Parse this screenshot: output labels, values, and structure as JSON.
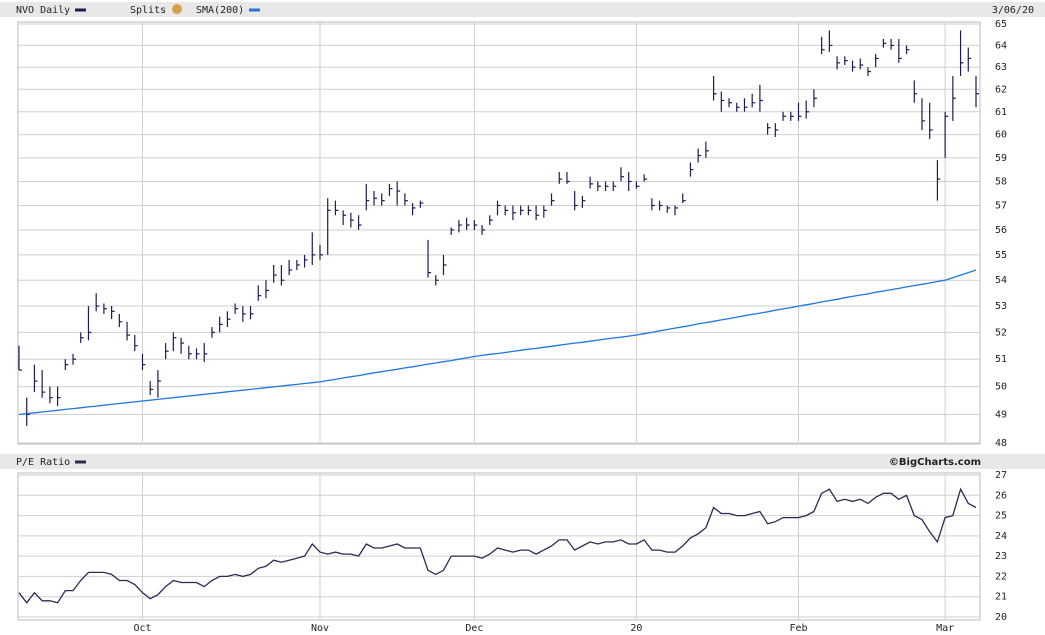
{
  "chart_data": [
    {
      "type": "ohlc",
      "splits_label": "Splits",
      "date_label": "3/06/20",
      "log_scale": true,
      "grid": true,
      "ylim": [
        48,
        65
      ],
      "yticks": [
        48,
        49,
        50,
        51,
        52,
        53,
        54,
        55,
        56,
        57,
        58,
        59,
        60,
        61,
        62,
        63,
        64,
        65
      ],
      "series": [
        {
          "name": "NVO Daily",
          "color": "#1c1c52",
          "high": [
            51.5,
            49.6,
            50.8,
            50.6,
            50.0,
            50.0,
            51.0,
            51.2,
            52.0,
            53.0,
            53.5,
            53.1,
            53.0,
            52.7,
            52.4,
            51.9,
            51.2,
            50.2,
            50.6,
            51.6,
            52.0,
            51.8,
            51.5,
            51.4,
            51.6,
            52.2,
            52.6,
            52.8,
            53.1,
            53.0,
            53.0,
            53.8,
            54.0,
            54.6,
            54.6,
            54.8,
            54.8,
            55.0,
            55.9,
            55.4,
            57.3,
            57.2,
            56.8,
            56.7,
            56.6,
            57.9,
            57.6,
            57.5,
            57.9,
            58.0,
            57.5,
            57.1,
            57.2,
            55.6,
            54.2,
            55.0,
            56.1,
            56.4,
            56.5,
            56.4,
            56.2,
            56.6,
            57.2,
            57.0,
            57.0,
            57.0,
            57.0,
            57.0,
            57.0,
            57.5,
            58.4,
            58.4,
            57.6,
            57.4,
            58.2,
            58.0,
            58.0,
            58.0,
            58.6,
            58.4,
            58.0,
            58.3,
            57.3,
            57.2,
            57.0,
            57.0,
            57.5,
            58.8,
            59.4,
            59.7,
            62.6,
            61.9,
            61.6,
            61.4,
            61.6,
            61.8,
            62.2,
            60.5,
            60.5,
            61.0,
            61.0,
            61.4,
            61.5,
            62.0,
            64.4,
            64.7,
            63.5,
            63.5,
            63.3,
            63.4,
            63.0,
            63.6,
            64.3,
            64.3,
            64.3,
            64.0,
            62.4,
            61.6,
            61.4,
            58.9,
            61.0,
            62.6,
            64.7,
            63.9,
            62.6
          ],
          "low": [
            50.6,
            48.6,
            49.8,
            49.6,
            49.4,
            49.3,
            50.6,
            50.8,
            51.6,
            51.7,
            52.8,
            52.7,
            52.5,
            52.2,
            51.7,
            51.3,
            50.6,
            49.7,
            49.6,
            51.0,
            51.3,
            51.2,
            51.0,
            51.0,
            50.9,
            51.8,
            52.0,
            52.2,
            52.7,
            52.4,
            52.5,
            53.2,
            53.3,
            53.9,
            53.8,
            54.2,
            54.4,
            54.5,
            54.6,
            54.8,
            55.0,
            56.6,
            56.2,
            56.1,
            56.0,
            56.8,
            57.0,
            57.0,
            57.4,
            57.0,
            57.0,
            56.6,
            56.9,
            54.1,
            53.8,
            54.2,
            55.8,
            55.9,
            56.0,
            56.0,
            55.8,
            56.2,
            56.6,
            56.6,
            56.4,
            56.6,
            56.6,
            56.4,
            56.5,
            57.0,
            57.9,
            57.9,
            56.8,
            56.9,
            57.7,
            57.6,
            57.6,
            57.6,
            58.0,
            57.6,
            57.7,
            58.0,
            56.8,
            56.8,
            56.7,
            56.6,
            57.1,
            58.2,
            58.8,
            59.0,
            61.5,
            61.0,
            61.2,
            61.0,
            61.0,
            61.2,
            61.0,
            60.0,
            59.9,
            60.6,
            60.6,
            60.6,
            60.7,
            61.2,
            63.6,
            63.7,
            62.9,
            63.1,
            62.8,
            62.9,
            62.6,
            63.0,
            63.9,
            63.8,
            63.2,
            63.6,
            61.4,
            60.2,
            59.8,
            57.2,
            59.0,
            60.6,
            62.6,
            62.8,
            61.2
          ],
          "close": [
            50.6,
            49.0,
            50.2,
            49.8,
            49.6,
            49.6,
            50.8,
            51.0,
            51.8,
            52.0,
            53.0,
            52.9,
            52.8,
            52.4,
            51.9,
            51.5,
            50.8,
            49.9,
            50.2,
            51.3,
            51.8,
            51.6,
            51.2,
            51.2,
            51.2,
            52.0,
            52.3,
            52.5,
            52.9,
            52.7,
            52.7,
            53.4,
            53.6,
            54.2,
            54.0,
            54.4,
            54.6,
            54.8,
            55.0,
            55.0,
            56.8,
            56.8,
            56.6,
            56.4,
            56.2,
            57.2,
            57.3,
            57.2,
            57.7,
            57.6,
            57.2,
            56.9,
            57.1,
            54.3,
            54.0,
            54.6,
            56.0,
            56.2,
            56.2,
            56.2,
            56.0,
            56.4,
            57.0,
            56.8,
            56.7,
            56.8,
            56.8,
            56.6,
            56.8,
            57.2,
            58.1,
            58.0,
            57.0,
            57.2,
            57.9,
            57.8,
            57.8,
            57.8,
            58.2,
            58.0,
            57.8,
            58.1,
            57.0,
            57.0,
            56.9,
            56.9,
            57.2,
            58.5,
            59.1,
            59.3,
            61.8,
            61.5,
            61.4,
            61.2,
            61.2,
            61.4,
            61.5,
            60.3,
            60.2,
            60.8,
            60.8,
            60.8,
            61.0,
            61.6,
            63.8,
            64.0,
            63.2,
            63.3,
            63.0,
            63.1,
            62.8,
            63.4,
            64.1,
            64.0,
            63.4,
            63.8,
            61.8,
            60.6,
            60.2,
            58.1,
            60.8,
            61.6,
            63.2,
            63.4,
            61.8
          ]
        },
        {
          "name": "SMA(200)",
          "color": "#1f78e0",
          "values": [
            49.0,
            49.03,
            49.06,
            49.09,
            49.12,
            49.15,
            49.18,
            49.21,
            49.24,
            49.27,
            49.3,
            49.33,
            49.36,
            49.39,
            49.42,
            49.45,
            49.48,
            49.51,
            49.54,
            49.57,
            49.6,
            49.63,
            49.66,
            49.69,
            49.72,
            49.75,
            49.78,
            49.81,
            49.84,
            49.87,
            49.9,
            49.93,
            49.96,
            49.99,
            50.02,
            50.05,
            50.08,
            50.11,
            50.14,
            50.17,
            50.22,
            50.26,
            50.31,
            50.36,
            50.4,
            50.45,
            50.5,
            50.54,
            50.59,
            50.63,
            50.68,
            50.72,
            50.77,
            50.82,
            50.86,
            50.91,
            50.95,
            51.0,
            51.05,
            51.1,
            51.14,
            51.18,
            51.21,
            51.25,
            51.29,
            51.33,
            51.37,
            51.4,
            51.44,
            51.48,
            51.52,
            51.56,
            51.6,
            51.63,
            51.67,
            51.71,
            51.75,
            51.79,
            51.82,
            51.86,
            51.9,
            51.95,
            52.0,
            52.06,
            52.11,
            52.16,
            52.21,
            52.26,
            52.32,
            52.37,
            52.42,
            52.47,
            52.52,
            52.58,
            52.63,
            52.68,
            52.73,
            52.78,
            52.84,
            52.89,
            52.94,
            53.0,
            53.05,
            53.1,
            53.16,
            53.21,
            53.26,
            53.32,
            53.37,
            53.42,
            53.47,
            53.53,
            53.58,
            53.63,
            53.68,
            53.74,
            53.79,
            53.84,
            53.89,
            53.95,
            54.0,
            54.1,
            54.2,
            54.3,
            54.4
          ]
        }
      ]
    },
    {
      "type": "line",
      "title": "P/E Ratio",
      "credit": "©BigCharts.com",
      "color": "#2a2a55",
      "grid": true,
      "ylim": [
        20,
        27
      ],
      "yticks": [
        20,
        21,
        22,
        23,
        24,
        25,
        26,
        27
      ],
      "categories": [
        null,
        null,
        null,
        null,
        null,
        null,
        null,
        null,
        null,
        null,
        null,
        null,
        null,
        null,
        null,
        null,
        "Oct",
        null,
        null,
        null,
        null,
        null,
        null,
        null,
        null,
        null,
        null,
        null,
        null,
        null,
        null,
        null,
        null,
        null,
        null,
        null,
        null,
        null,
        null,
        "Nov",
        null,
        null,
        null,
        null,
        null,
        null,
        null,
        null,
        null,
        null,
        null,
        null,
        null,
        null,
        null,
        null,
        null,
        null,
        null,
        "Dec",
        null,
        null,
        null,
        null,
        null,
        null,
        null,
        null,
        null,
        null,
        null,
        null,
        null,
        null,
        null,
        null,
        null,
        null,
        null,
        null,
        "20",
        null,
        null,
        null,
        null,
        null,
        null,
        null,
        null,
        null,
        null,
        null,
        null,
        null,
        null,
        null,
        null,
        null,
        null,
        null,
        null,
        "Feb",
        null,
        null,
        null,
        null,
        null,
        null,
        null,
        null,
        null,
        null,
        null,
        null,
        null,
        null,
        null,
        null,
        null,
        null,
        "Mar",
        null,
        null,
        null,
        null
      ],
      "values": [
        21.2,
        20.7,
        21.2,
        20.8,
        20.8,
        20.7,
        21.3,
        21.3,
        21.8,
        22.2,
        22.2,
        22.2,
        22.1,
        21.8,
        21.8,
        21.6,
        21.2,
        20.9,
        21.1,
        21.5,
        21.8,
        21.7,
        21.7,
        21.7,
        21.5,
        21.8,
        22.0,
        22.0,
        22.1,
        22.0,
        22.1,
        22.4,
        22.5,
        22.8,
        22.7,
        22.8,
        22.9,
        23.0,
        23.6,
        23.2,
        23.1,
        23.2,
        23.1,
        23.1,
        23.0,
        23.6,
        23.4,
        23.4,
        23.5,
        23.6,
        23.4,
        23.4,
        23.4,
        22.3,
        22.1,
        22.3,
        23.0,
        23.0,
        23.0,
        23.0,
        22.9,
        23.1,
        23.4,
        23.3,
        23.2,
        23.3,
        23.3,
        23.1,
        23.3,
        23.5,
        23.8,
        23.8,
        23.3,
        23.5,
        23.7,
        23.6,
        23.7,
        23.7,
        23.8,
        23.6,
        23.6,
        23.8,
        23.3,
        23.3,
        23.2,
        23.2,
        23.5,
        23.9,
        24.1,
        24.4,
        25.4,
        25.1,
        25.1,
        25.0,
        25.0,
        25.1,
        25.2,
        24.6,
        24.7,
        24.9,
        24.9,
        24.9,
        25.0,
        25.2,
        26.1,
        26.3,
        25.7,
        25.8,
        25.7,
        25.8,
        25.6,
        25.9,
        26.1,
        26.1,
        25.8,
        26.0,
        25.0,
        24.8,
        24.2,
        23.7,
        24.9,
        25.0,
        26.3,
        25.6,
        25.4
      ]
    }
  ]
}
